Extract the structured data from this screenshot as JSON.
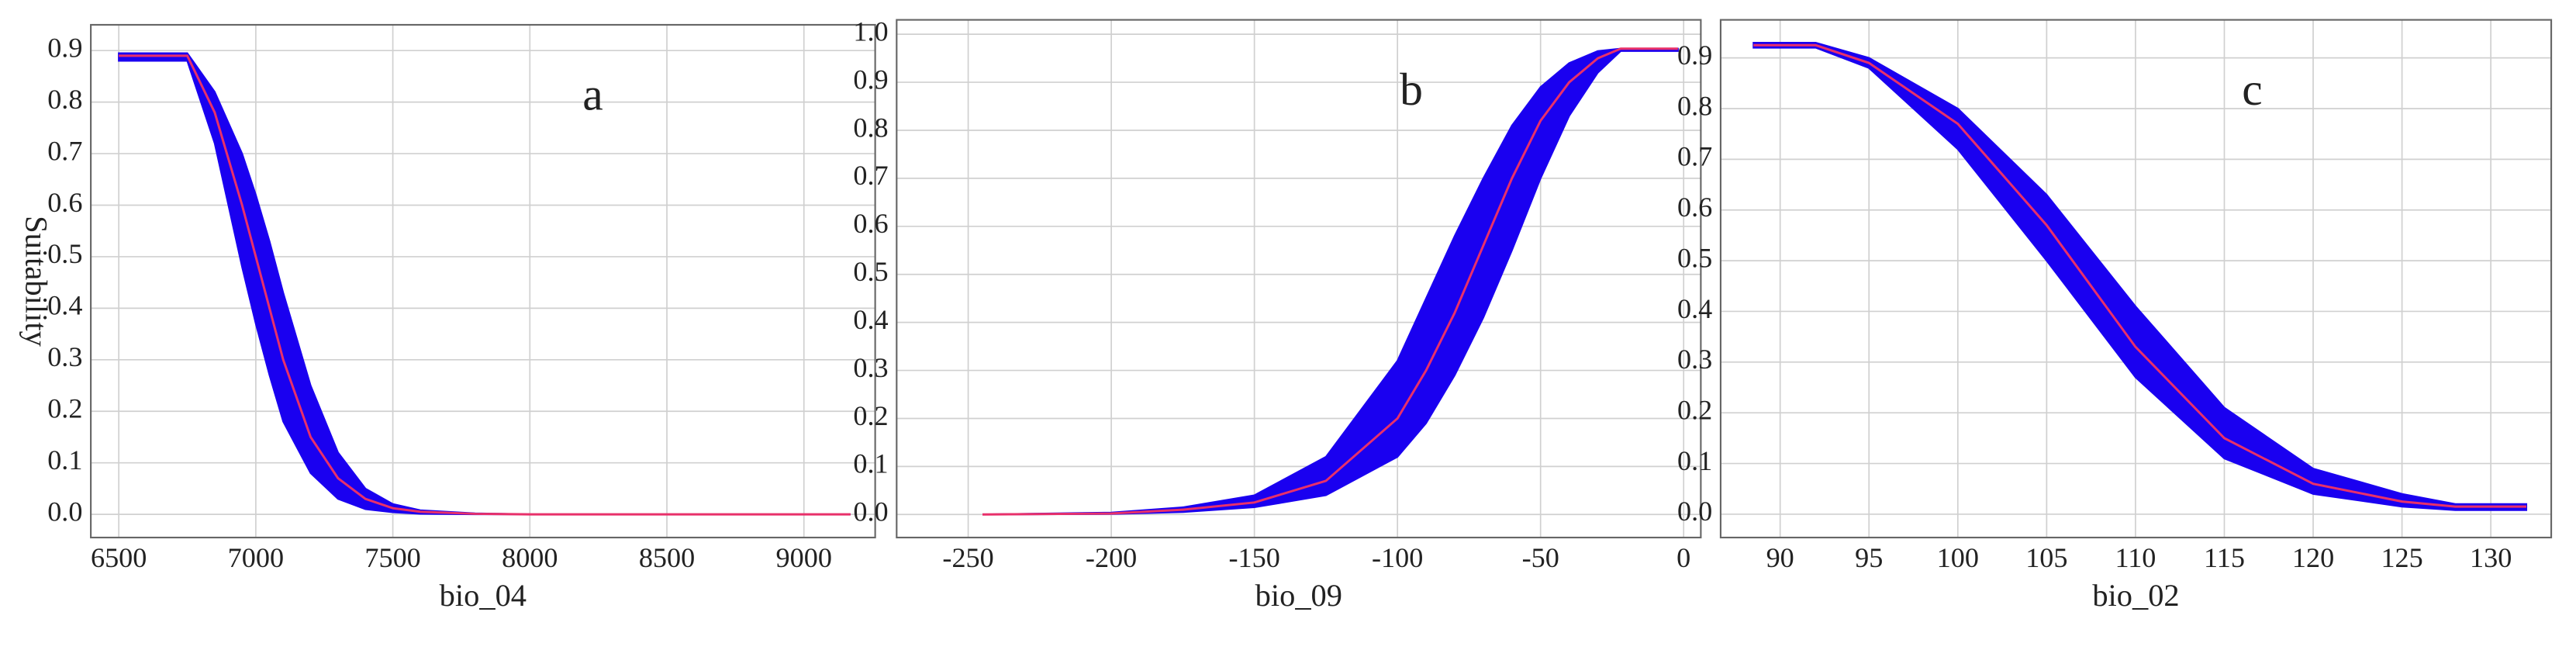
{
  "chart_data": [
    {
      "type": "line",
      "panel_label": "a",
      "xlabel": "bio_04",
      "ylabel": "Suitability",
      "x": [
        6500,
        6750,
        6850,
        6950,
        7000,
        7050,
        7100,
        7200,
        7300,
        7400,
        7500,
        7600,
        7800,
        8000,
        9170
      ],
      "values": [
        0.89,
        0.89,
        0.78,
        0.6,
        0.5,
        0.4,
        0.3,
        0.15,
        0.07,
        0.03,
        0.012,
        0.005,
        0.001,
        0,
        0
      ],
      "upper": [
        0.895,
        0.895,
        0.82,
        0.7,
        0.62,
        0.53,
        0.43,
        0.25,
        0.12,
        0.05,
        0.02,
        0.008,
        0.002,
        0,
        0
      ],
      "lower": [
        0.88,
        0.88,
        0.72,
        0.48,
        0.37,
        0.27,
        0.18,
        0.08,
        0.03,
        0.01,
        0.004,
        0.001,
        0,
        0,
        0
      ],
      "color": "#e8306a",
      "band_color": "#1a00f0",
      "xlim": [
        6398,
        9260
      ],
      "ylim": [
        -0.045,
        0.95
      ],
      "xticks": [
        6500,
        7000,
        7500,
        8000,
        8500,
        9000
      ],
      "yticks": [
        {
          "value": 0,
          "label": "0.0"
        },
        0.1,
        0.2,
        0.3,
        0.4,
        0.5,
        0.6,
        0.7,
        0.8,
        0.9
      ],
      "grid": true
    },
    {
      "type": "line",
      "panel_label": "b",
      "xlabel": "bio_09",
      "x": [
        -245,
        -200,
        -175,
        -150,
        -125,
        -100,
        -90,
        -80,
        -70,
        -60,
        -50,
        -40,
        -30,
        -22,
        -2
      ],
      "values": [
        0,
        0.002,
        0.01,
        0.025,
        0.07,
        0.2,
        0.3,
        0.42,
        0.56,
        0.7,
        0.82,
        0.9,
        0.95,
        0.97,
        0.97
      ],
      "upper": [
        0,
        0.004,
        0.015,
        0.04,
        0.12,
        0.32,
        0.45,
        0.58,
        0.7,
        0.81,
        0.89,
        0.94,
        0.965,
        0.97,
        0.97
      ],
      "lower": [
        0,
        0.001,
        0.005,
        0.015,
        0.04,
        0.12,
        0.19,
        0.29,
        0.41,
        0.55,
        0.7,
        0.83,
        0.92,
        0.965,
        0.965
      ],
      "color": "#e8306a",
      "band_color": "#1a00f0",
      "xlim": [
        -275,
        6
      ],
      "ylim": [
        -0.048,
        1.03
      ],
      "xticks": [
        -250,
        -200,
        -150,
        -100,
        -50,
        0
      ],
      "yticks": [
        {
          "value": 0,
          "label": "0.0"
        },
        0.1,
        0.2,
        0.3,
        0.4,
        0.5,
        0.6,
        0.7,
        0.8,
        0.9,
        {
          "value": 1,
          "label": "1.0"
        }
      ],
      "grid": true
    },
    {
      "type": "line",
      "panel_label": "c",
      "xlabel": "bio_02",
      "x": [
        88.5,
        92,
        95,
        100,
        105,
        110,
        115,
        120,
        125,
        128,
        132
      ],
      "values": [
        0.925,
        0.925,
        0.89,
        0.77,
        0.57,
        0.33,
        0.15,
        0.06,
        0.025,
        0.015,
        0.015
      ],
      "upper": [
        0.93,
        0.93,
        0.9,
        0.8,
        0.63,
        0.41,
        0.21,
        0.09,
        0.04,
        0.02,
        0.02
      ],
      "lower": [
        0.92,
        0.92,
        0.88,
        0.72,
        0.5,
        0.27,
        0.11,
        0.04,
        0.015,
        0.008,
        0.008
      ],
      "color": "#e8306a",
      "band_color": "#1a00f0",
      "xlim": [
        86.65,
        133.4
      ],
      "ylim": [
        -0.046,
        0.975
      ],
      "xticks": [
        90,
        95,
        100,
        105,
        110,
        115,
        120,
        125,
        130
      ],
      "yticks": [
        {
          "value": 0,
          "label": "0.0"
        },
        0.1,
        0.2,
        0.3,
        0.4,
        0.5,
        0.6,
        0.7,
        0.8,
        0.9
      ],
      "grid": true
    }
  ]
}
